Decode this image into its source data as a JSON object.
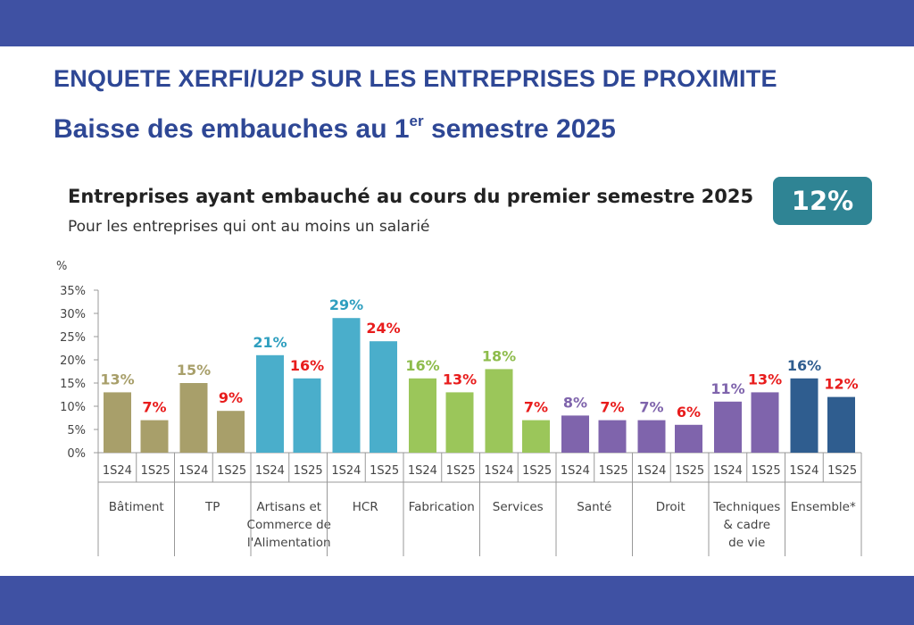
{
  "header": {
    "title": "ENQUETE XERFI/U2P SUR LES ENTREPRISES DE PROXIMITE",
    "subtitle_main": "Baisse des embauches au 1",
    "subtitle_sup": "er",
    "subtitle_end": " semestre 2025"
  },
  "badge": {
    "value": "12%"
  },
  "colors": {
    "band": "#3f51a3",
    "headline": "#2e4795",
    "badge": "#2f8494",
    "label_2025": "#e81c1c"
  },
  "chart_data": {
    "type": "bar",
    "title": "Entreprises ayant embauché au cours du premier semestre 2025",
    "subtitle": "Pour les entreprises qui ont au moins un salarié",
    "ylabel": "%",
    "ylim": [
      0,
      35
    ],
    "yticks": [
      "0%",
      "5%",
      "10%",
      "15%",
      "20%",
      "25%",
      "30%",
      "35%"
    ],
    "ytick_values": [
      0,
      5,
      10,
      15,
      20,
      25,
      30,
      35
    ],
    "period_labels": [
      "1S24",
      "1S25"
    ],
    "groups": [
      {
        "name": [
          "Bâtiment"
        ],
        "values": [
          13,
          7
        ],
        "color": "#a89f6a",
        "label_color": "#a89f6a"
      },
      {
        "name": [
          "TP"
        ],
        "values": [
          15,
          9
        ],
        "color": "#a89f6a",
        "label_color": "#a89f6a"
      },
      {
        "name": [
          "Artisans et",
          "Commerce de",
          "l'Alimentation"
        ],
        "values": [
          21,
          16
        ],
        "color": "#4aaecb",
        "label_color": "#2f9fbf"
      },
      {
        "name": [
          "HCR"
        ],
        "values": [
          29,
          24
        ],
        "color": "#4aaecb",
        "label_color": "#2f9fbf"
      },
      {
        "name": [
          "Fabrication"
        ],
        "values": [
          16,
          13
        ],
        "color": "#9bc65a",
        "label_color": "#8ebc4c"
      },
      {
        "name": [
          "Services"
        ],
        "values": [
          18,
          7
        ],
        "color": "#9bc65a",
        "label_color": "#8ebc4c"
      },
      {
        "name": [
          "Santé"
        ],
        "values": [
          8,
          7
        ],
        "color": "#7f64ac",
        "label_color": "#7f64ac"
      },
      {
        "name": [
          "Droit"
        ],
        "values": [
          7,
          6
        ],
        "color": "#7f64ac",
        "label_color": "#7f64ac"
      },
      {
        "name": [
          "Techniques",
          "& cadre",
          "de vie"
        ],
        "values": [
          11,
          13
        ],
        "color": "#7f64ac",
        "label_color": "#7f64ac"
      },
      {
        "name": [
          "Ensemble*"
        ],
        "values": [
          16,
          12
        ],
        "color": "#2f5d8f",
        "label_color": "#2f5d8f"
      }
    ]
  }
}
